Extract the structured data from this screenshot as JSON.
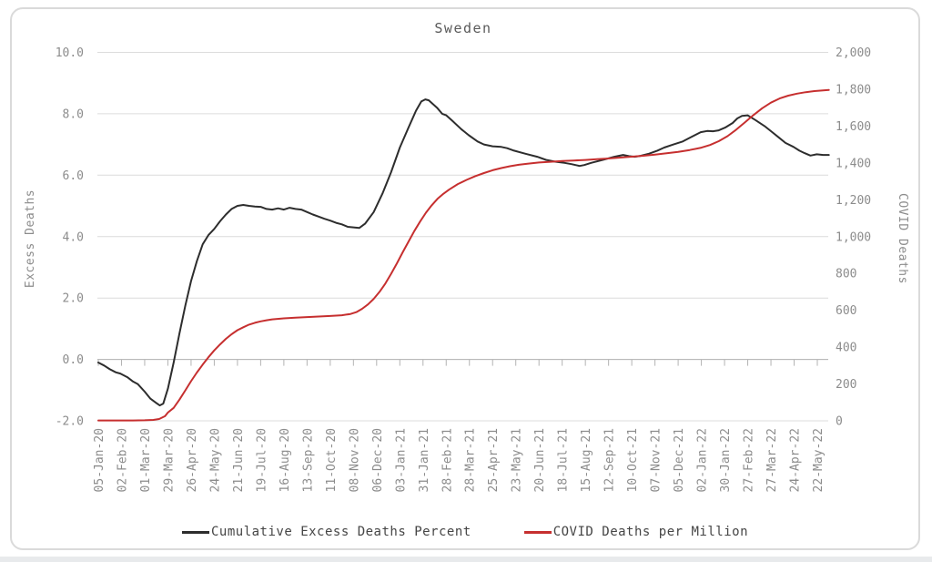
{
  "title": "Sweden",
  "legend": {
    "items": [
      {
        "label": "Cumulative Excess Deaths Percent",
        "color": "#2d2d2d"
      },
      {
        "label": "COVID Deaths per Million",
        "color": "#c62f2f"
      }
    ]
  },
  "colors": {
    "grid": "#dcdcdc",
    "zero_axis": "#b3b3b3",
    "tick_label": "#8c8c8c",
    "card_border": "#dadada"
  },
  "chart_data": {
    "type": "line",
    "title": "Sweden",
    "grid": "horizontal",
    "legend_position": "bottom",
    "left_axis": {
      "label": "Excess Deaths",
      "range": [
        -2.0,
        10.0
      ],
      "tick_labels": [
        "10.0",
        "8.0",
        "6.0",
        "4.0",
        "2.0",
        "0.0",
        "-2.0"
      ]
    },
    "right_axis": {
      "label": "COVID Deaths",
      "range": [
        0,
        2000
      ],
      "tick_labels": [
        "2,000",
        "1,800",
        "1,600",
        "1,400",
        "1,200",
        "1,000",
        "800",
        "600",
        "400",
        "200",
        "0"
      ]
    },
    "x_axis": {
      "unit": "weeks since 05-Jan-20",
      "tick_interval_weeks": 4,
      "tick_labels": [
        "05-Jan-20",
        "02-Feb-20",
        "01-Mar-20",
        "29-Mar-20",
        "26-Apr-20",
        "24-May-20",
        "21-Jun-20",
        "19-Jul-20",
        "16-Aug-20",
        "13-Sep-20",
        "11-Oct-20",
        "08-Nov-20",
        "06-Dec-20",
        "03-Jan-21",
        "31-Jan-21",
        "28-Feb-21",
        "28-Mar-21",
        "25-Apr-21",
        "23-May-21",
        "20-Jun-21",
        "18-Jul-21",
        "15-Aug-21",
        "12-Sep-21",
        "10-Oct-21",
        "07-Nov-21",
        "05-Dec-21",
        "02-Jan-22",
        "30-Jan-22",
        "27-Feb-22",
        "27-Mar-22",
        "24-Apr-22",
        "22-May-22"
      ]
    },
    "series": [
      {
        "name": "Cumulative Excess Deaths Percent",
        "axis": "left",
        "color": "#2d2d2d",
        "points": [
          [
            0,
            -0.1
          ],
          [
            1,
            -0.2
          ],
          [
            2,
            -0.32
          ],
          [
            3,
            -0.42
          ],
          [
            3.8,
            -0.46
          ],
          [
            5,
            -0.58
          ],
          [
            6,
            -0.72
          ],
          [
            6.8,
            -0.8
          ],
          [
            8,
            -1.05
          ],
          [
            9,
            -1.28
          ],
          [
            10,
            -1.42
          ],
          [
            10.6,
            -1.5
          ],
          [
            11.2,
            -1.44
          ],
          [
            12,
            -0.95
          ],
          [
            13,
            -0.1
          ],
          [
            14,
            0.85
          ],
          [
            15,
            1.75
          ],
          [
            16,
            2.55
          ],
          [
            17,
            3.2
          ],
          [
            18,
            3.75
          ],
          [
            19,
            4.05
          ],
          [
            20,
            4.25
          ],
          [
            21,
            4.5
          ],
          [
            22,
            4.72
          ],
          [
            23,
            4.9
          ],
          [
            24,
            5.0
          ],
          [
            25,
            5.03
          ],
          [
            26,
            5.0
          ],
          [
            27,
            4.98
          ],
          [
            28,
            4.97
          ],
          [
            29,
            4.9
          ],
          [
            30,
            4.88
          ],
          [
            31,
            4.92
          ],
          [
            32,
            4.88
          ],
          [
            33,
            4.94
          ],
          [
            34,
            4.9
          ],
          [
            35,
            4.88
          ],
          [
            36,
            4.8
          ],
          [
            37,
            4.72
          ],
          [
            38,
            4.65
          ],
          [
            39,
            4.58
          ],
          [
            40,
            4.52
          ],
          [
            41,
            4.45
          ],
          [
            42,
            4.4
          ],
          [
            43,
            4.32
          ],
          [
            44,
            4.3
          ],
          [
            45,
            4.28
          ],
          [
            46,
            4.42
          ],
          [
            47.5,
            4.8
          ],
          [
            49,
            5.4
          ],
          [
            50.5,
            6.1
          ],
          [
            52,
            6.9
          ],
          [
            53.5,
            7.55
          ],
          [
            54.8,
            8.1
          ],
          [
            55.7,
            8.4
          ],
          [
            56.4,
            8.47
          ],
          [
            57,
            8.44
          ],
          [
            58.4,
            8.2
          ],
          [
            59.3,
            8.0
          ],
          [
            60,
            7.95
          ],
          [
            61,
            7.78
          ],
          [
            62.6,
            7.5
          ],
          [
            63.9,
            7.3
          ],
          [
            65.4,
            7.1
          ],
          [
            66.5,
            7.0
          ],
          [
            68,
            6.94
          ],
          [
            69.5,
            6.92
          ],
          [
            70.5,
            6.88
          ],
          [
            71.7,
            6.8
          ],
          [
            73.6,
            6.7
          ],
          [
            75.7,
            6.6
          ],
          [
            77.2,
            6.5
          ],
          [
            78.8,
            6.44
          ],
          [
            80.4,
            6.4
          ],
          [
            81.6,
            6.36
          ],
          [
            83,
            6.3
          ],
          [
            83.8,
            6.33
          ],
          [
            85,
            6.4
          ],
          [
            87,
            6.5
          ],
          [
            89,
            6.6
          ],
          [
            90.5,
            6.66
          ],
          [
            91.5,
            6.62
          ],
          [
            92.5,
            6.6
          ],
          [
            93.5,
            6.63
          ],
          [
            95,
            6.7
          ],
          [
            96.4,
            6.8
          ],
          [
            97.6,
            6.9
          ],
          [
            99.2,
            7.0
          ],
          [
            100.8,
            7.1
          ],
          [
            102.3,
            7.25
          ],
          [
            103.9,
            7.4
          ],
          [
            105,
            7.44
          ],
          [
            106,
            7.43
          ],
          [
            107,
            7.46
          ],
          [
            108.1,
            7.55
          ],
          [
            109.4,
            7.7
          ],
          [
            110.2,
            7.85
          ],
          [
            111,
            7.93
          ],
          [
            112,
            7.95
          ],
          [
            113.3,
            7.8
          ],
          [
            114.9,
            7.6
          ],
          [
            116.1,
            7.42
          ],
          [
            117.4,
            7.22
          ],
          [
            118.5,
            7.05
          ],
          [
            119.9,
            6.92
          ],
          [
            120.9,
            6.8
          ],
          [
            121.8,
            6.72
          ],
          [
            122.8,
            6.64
          ],
          [
            123.9,
            6.68
          ],
          [
            125,
            6.66
          ],
          [
            126,
            6.66
          ]
        ]
      },
      {
        "name": "COVID Deaths per Million",
        "axis": "right",
        "color": "#c62f2f",
        "points": [
          [
            0,
            2
          ],
          [
            2,
            2
          ],
          [
            4,
            2
          ],
          [
            6,
            2
          ],
          [
            8,
            3
          ],
          [
            9.5,
            5
          ],
          [
            10.5,
            10
          ],
          [
            11.5,
            25
          ],
          [
            12,
            45
          ],
          [
            13,
            70
          ],
          [
            14,
            115
          ],
          [
            15,
            165
          ],
          [
            16,
            215
          ],
          [
            17,
            262
          ],
          [
            18,
            305
          ],
          [
            19,
            345
          ],
          [
            20,
            382
          ],
          [
            21,
            415
          ],
          [
            22,
            445
          ],
          [
            23,
            470
          ],
          [
            24,
            492
          ],
          [
            25,
            508
          ],
          [
            26,
            522
          ],
          [
            27,
            532
          ],
          [
            28,
            540
          ],
          [
            29,
            546
          ],
          [
            30,
            551
          ],
          [
            32,
            556
          ],
          [
            34,
            560
          ],
          [
            36,
            563
          ],
          [
            38,
            566
          ],
          [
            40,
            569
          ],
          [
            42,
            573
          ],
          [
            43.5,
            580
          ],
          [
            44.5,
            590
          ],
          [
            45.5,
            608
          ],
          [
            46.5,
            632
          ],
          [
            47.5,
            662
          ],
          [
            48.5,
            700
          ],
          [
            49.5,
            745
          ],
          [
            50.5,
            798
          ],
          [
            51.5,
            855
          ],
          [
            52.5,
            915
          ],
          [
            53.5,
            972
          ],
          [
            54.5,
            1030
          ],
          [
            55.5,
            1082
          ],
          [
            56.5,
            1130
          ],
          [
            57.5,
            1170
          ],
          [
            58.5,
            1205
          ],
          [
            59.5,
            1232
          ],
          [
            60.5,
            1255
          ],
          [
            62,
            1285
          ],
          [
            63.5,
            1308
          ],
          [
            65,
            1328
          ],
          [
            66.5,
            1345
          ],
          [
            68,
            1360
          ],
          [
            69.5,
            1372
          ],
          [
            71,
            1382
          ],
          [
            72.5,
            1390
          ],
          [
            74,
            1396
          ],
          [
            76,
            1402
          ],
          [
            78,
            1406
          ],
          [
            80,
            1410
          ],
          [
            82,
            1413
          ],
          [
            84,
            1416
          ],
          [
            86,
            1420
          ],
          [
            88,
            1424
          ],
          [
            90,
            1429
          ],
          [
            92,
            1434
          ],
          [
            94,
            1439
          ],
          [
            96,
            1445
          ],
          [
            98,
            1452
          ],
          [
            100,
            1460
          ],
          [
            102,
            1470
          ],
          [
            104,
            1483
          ],
          [
            105.5,
            1497
          ],
          [
            107,
            1518
          ],
          [
            108.5,
            1545
          ],
          [
            110,
            1580
          ],
          [
            111.5,
            1620
          ],
          [
            113,
            1660
          ],
          [
            114.5,
            1697
          ],
          [
            116,
            1727
          ],
          [
            117.5,
            1750
          ],
          [
            119,
            1765
          ],
          [
            120.5,
            1776
          ],
          [
            122,
            1784
          ],
          [
            123.5,
            1790
          ],
          [
            125,
            1794
          ],
          [
            126,
            1796
          ]
        ]
      }
    ]
  }
}
